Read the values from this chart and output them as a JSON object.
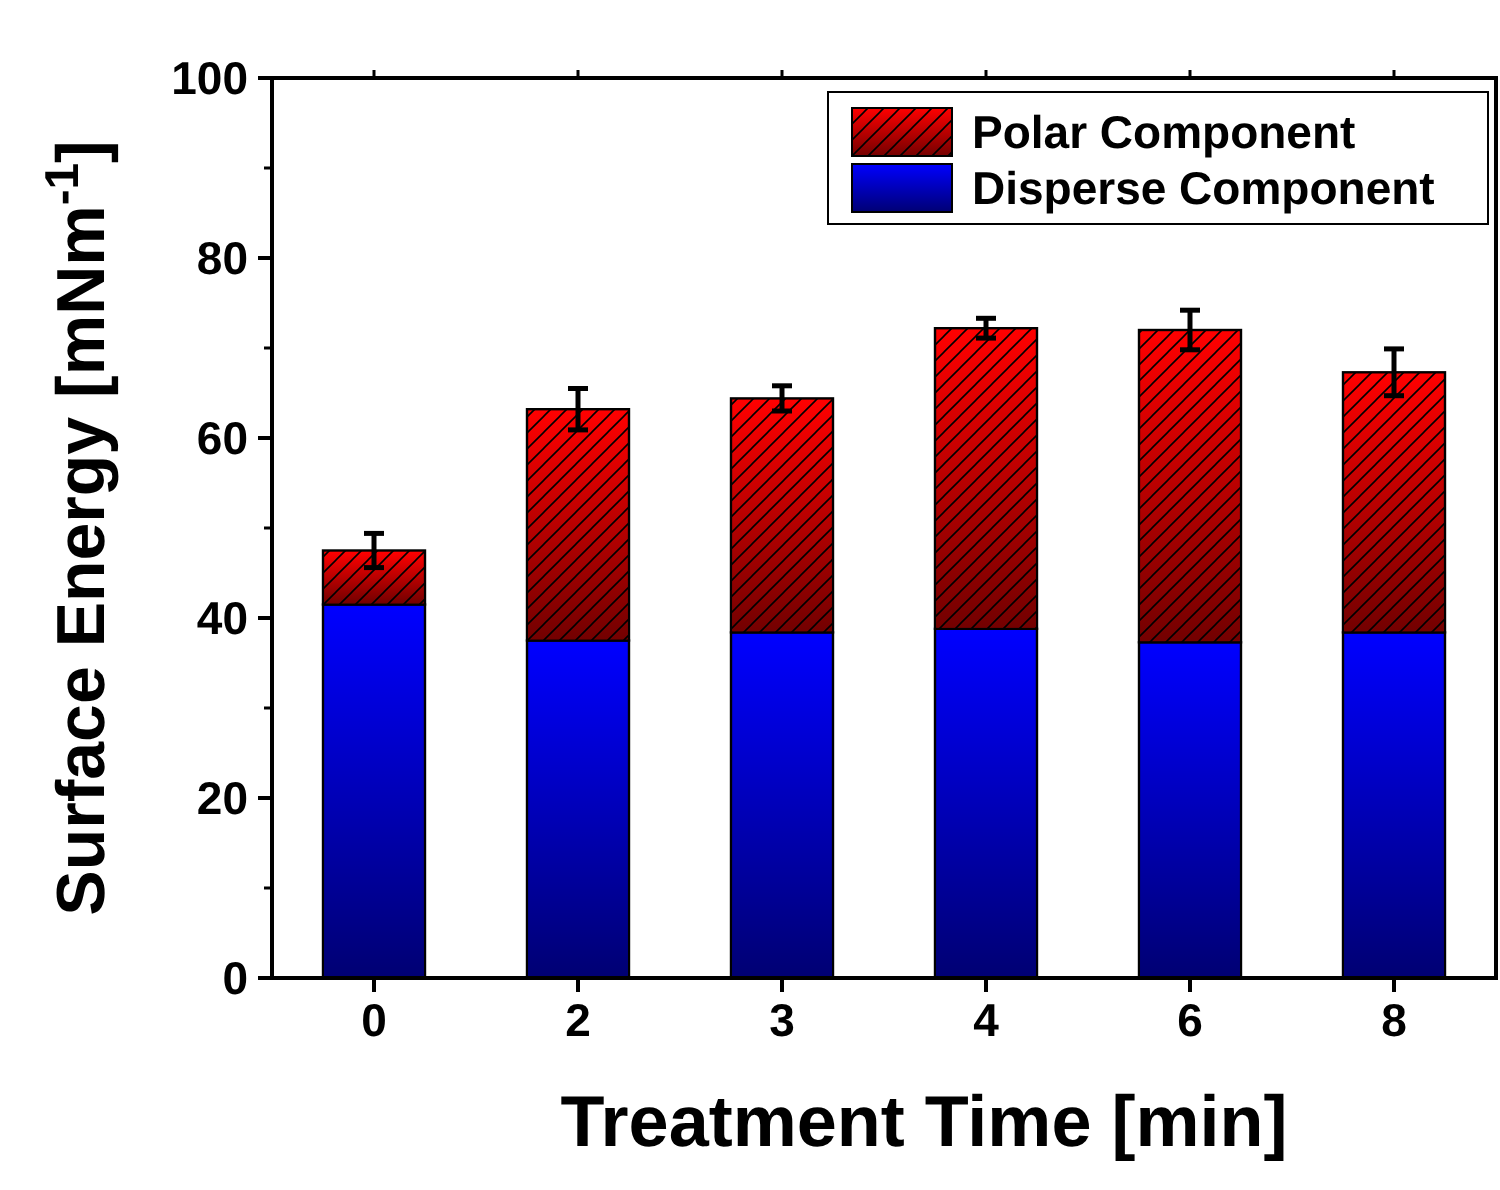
{
  "chart_data": {
    "type": "bar",
    "xlabel": "Treatment Time [min]",
    "ylabel": "Surface Energy [mNm$^{-1}$]",
    "categories": [
      "0",
      "2",
      "3",
      "4",
      "6",
      "8"
    ],
    "stacked": true,
    "legend": "top right",
    "ylim": [
      0,
      100
    ],
    "yticks": [
      0,
      20,
      40,
      60,
      80,
      100
    ],
    "series": [
      {
        "name": "Disperse Component",
        "color": "#0000ff",
        "values": [
          41.5,
          37.5,
          38.4,
          38.8,
          37.3,
          38.4
        ]
      },
      {
        "name": "Polar Component",
        "color": "#ff0000",
        "values": [
          6.0,
          25.7,
          26.0,
          33.4,
          34.7,
          28.9
        ],
        "errors": [
          1.9,
          2.3,
          1.4,
          1.1,
          2.2,
          2.6
        ]
      }
    ]
  }
}
